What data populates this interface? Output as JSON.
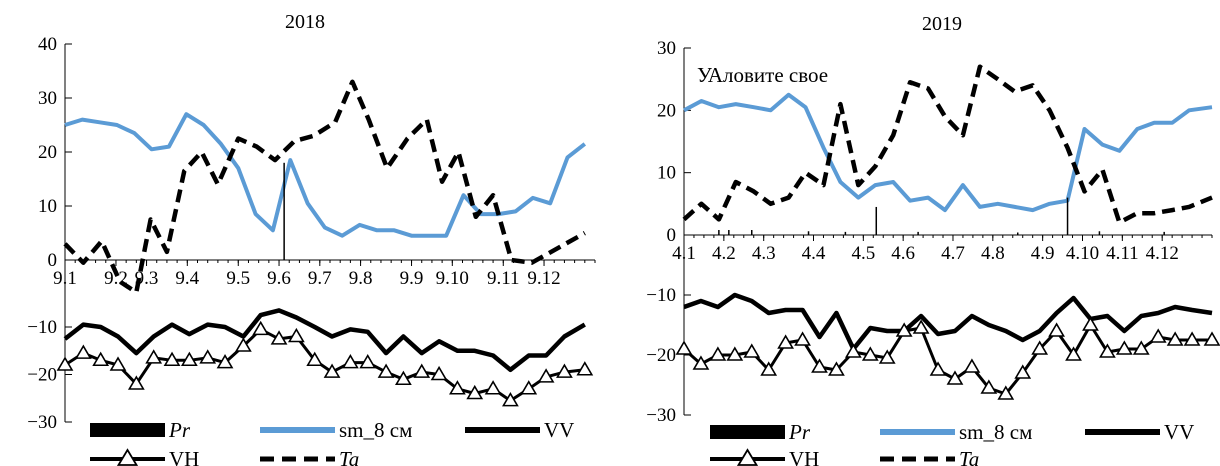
{
  "chart_data": [
    {
      "type": "line",
      "title": "2018",
      "y_upper": {
        "ylim": [
          0,
          40
        ],
        "ticks": [
          0,
          10,
          20,
          30,
          40
        ]
      },
      "y_lower": {
        "ylim": [
          -30,
          -5
        ],
        "ticks": [
          -30,
          -20,
          -10
        ]
      },
      "x_count": 52,
      "x_ticks": [
        {
          "i": 0,
          "label": "9.1"
        },
        {
          "i": 5,
          "label": "9.2"
        },
        {
          "i": 8,
          "label": "9.3"
        },
        {
          "i": 12,
          "label": "9.4"
        },
        {
          "i": 17,
          "label": "9.5"
        },
        {
          "i": 21,
          "label": "9.6"
        },
        {
          "i": 25,
          "label": "9.7"
        },
        {
          "i": 29,
          "label": "9.8"
        },
        {
          "i": 34,
          "label": "9.9"
        },
        {
          "i": 38,
          "label": "9.10"
        },
        {
          "i": 43,
          "label": "9.11"
        },
        {
          "i": 47,
          "label": "9.12"
        }
      ],
      "series": [
        {
          "name": "sm_8 см",
          "panel": "upper",
          "values": [
            25,
            26,
            25.5,
            25,
            23.5,
            20.5,
            21,
            27,
            25,
            21.5,
            17,
            8.5,
            5.5,
            18.5,
            10.5,
            6,
            4.5,
            6.5,
            5.5,
            5.5,
            4.5,
            4.5,
            4.5,
            12,
            8.5,
            8.5,
            9,
            11.5,
            10.5,
            19,
            21.5
          ],
          "x": [
            0,
            1.7,
            3.4,
            5.1,
            6.8,
            8.5,
            10.2,
            11.9,
            13.6,
            15.3,
            17,
            18.7,
            20.4,
            22.1,
            23.8,
            25.5,
            27.2,
            28.9,
            30.6,
            32.3,
            34,
            35.7,
            37.4,
            39.1,
            40.8,
            42.5,
            44.2,
            45.9,
            47.6,
            49.3,
            51
          ]
        },
        {
          "name": "Ta",
          "panel": "upper",
          "values": [
            3,
            -0.5,
            3.5,
            -4,
            -6,
            7.5,
            1.5,
            16.5,
            20,
            14,
            22.5,
            21,
            18.5,
            22,
            23,
            25.5,
            33,
            26,
            17,
            22.5,
            26,
            14.5,
            20,
            8,
            12,
            0,
            -0.5,
            5
          ],
          "x": [
            0,
            1.8,
            3.6,
            5.4,
            7,
            8.4,
            10,
            11.7,
            13.4,
            15,
            17,
            18.8,
            20.6,
            22.5,
            24.4,
            26.5,
            28.2,
            29.8,
            31.6,
            33.6,
            35.5,
            37,
            38.6,
            40.3,
            42,
            43.8,
            45.8,
            51
          ]
        },
        {
          "name": "Pr",
          "panel": "upper",
          "values": [
            18
          ],
          "x": [
            21.5
          ]
        },
        {
          "name": "VV",
          "panel": "lower",
          "values": [
            -12.5,
            -9.5,
            -10,
            -12,
            -15.5,
            -12,
            -9.5,
            -11.5,
            -9.5,
            -10,
            -12,
            -7.5,
            -6.5,
            -8,
            -10,
            -12,
            -10.5,
            -11,
            -15.5,
            -12,
            -15.5,
            -13,
            -15,
            -15,
            -16,
            -19,
            -16,
            -16,
            -12,
            -9.5
          ],
          "x": [
            0,
            1.8,
            3.5,
            5.2,
            7,
            8.7,
            10.5,
            12.2,
            14,
            15.7,
            17.5,
            19.2,
            21,
            22.7,
            24.5,
            26.2,
            28,
            29.7,
            31.5,
            33.2,
            35,
            36.7,
            38.5,
            40.2,
            42,
            43.7,
            45.5,
            47.2,
            49,
            51
          ]
        },
        {
          "name": "VH",
          "panel": "lower",
          "values": [
            -18,
            -15.5,
            -17,
            -18,
            -22,
            -16.5,
            -17,
            -17,
            -16.5,
            -17.5,
            -14,
            -10.5,
            -12.5,
            -12,
            -17,
            -19.5,
            -17.5,
            -17.5,
            -19.5,
            -21,
            -19.5,
            -20,
            -23,
            -24,
            -23,
            -25.5,
            -23,
            -20.5,
            -19.5,
            -19
          ],
          "x": [
            0,
            1.8,
            3.5,
            5.2,
            7,
            8.7,
            10.5,
            12.2,
            14,
            15.7,
            17.5,
            19.2,
            21,
            22.7,
            24.5,
            26.2,
            28,
            29.7,
            31.5,
            33.2,
            35,
            36.7,
            38.5,
            40.2,
            42,
            43.7,
            45.5,
            47.2,
            49,
            51
          ]
        }
      ]
    },
    {
      "type": "line",
      "title": "2019",
      "annotation": "УАловите свое",
      "y_upper": {
        "ylim": [
          0,
          30
        ],
        "ticks": [
          0,
          10,
          20,
          30
        ]
      },
      "y_lower": {
        "ylim": [
          -30,
          -5
        ],
        "ticks": [
          -30,
          -20,
          -10
        ]
      },
      "x_count": 53,
      "x_ticks": [
        {
          "i": 0,
          "label": "4.1"
        },
        {
          "i": 4,
          "label": "4.2"
        },
        {
          "i": 8,
          "label": "4.3"
        },
        {
          "i": 13,
          "label": "4.4"
        },
        {
          "i": 18,
          "label": "4.5"
        },
        {
          "i": 22,
          "label": "4.6"
        },
        {
          "i": 27,
          "label": "4.7"
        },
        {
          "i": 31,
          "label": "4.8"
        },
        {
          "i": 36,
          "label": "4.9"
        },
        {
          "i": 40,
          "label": "4.10"
        },
        {
          "i": 44,
          "label": "4.11"
        },
        {
          "i": 48,
          "label": "4.12"
        }
      ],
      "series": [
        {
          "name": "sm_8 см",
          "panel": "upper",
          "values": [
            20,
            21.5,
            20.5,
            21,
            20.5,
            20,
            22.5,
            20.5,
            14,
            8.5,
            6,
            8,
            8.5,
            5.5,
            6,
            4,
            8,
            4.5,
            5,
            4.5,
            4,
            5,
            5.5,
            17,
            14.5,
            13.5,
            17,
            18,
            18,
            20,
            20.5
          ],
          "x": [
            0,
            1.75,
            3.5,
            5.2,
            7,
            8.7,
            10.5,
            12.2,
            14,
            15.7,
            17.5,
            19.2,
            21,
            22.7,
            24.5,
            26.2,
            28,
            29.7,
            31.5,
            33.2,
            35,
            36.7,
            38.5,
            40.2,
            42,
            43.7,
            45.5,
            47.2,
            49,
            50.7,
            53
          ]
        },
        {
          "name": "Ta",
          "panel": "upper",
          "values": [
            2.5,
            5,
            2.5,
            8.5,
            7,
            5,
            6,
            10,
            8,
            21,
            8,
            11,
            16,
            24.5,
            23.5,
            19,
            16,
            27,
            25,
            23,
            24,
            20,
            14,
            7,
            10.5,
            2,
            3.5,
            3.5,
            4,
            4.5,
            6
          ],
          "x": [
            0,
            1.75,
            3.5,
            5.2,
            7,
            8.7,
            10.5,
            12.2,
            14,
            15.7,
            17.5,
            19.2,
            21,
            22.7,
            24.5,
            26.2,
            28,
            29.7,
            31.5,
            33.2,
            35,
            36.7,
            38.5,
            40.2,
            42,
            43.7,
            45.5,
            47.2,
            49,
            50.7,
            53
          ]
        },
        {
          "name": "Pr",
          "panel": "upper",
          "values": [
            0.8,
            0.8,
            0.8,
            0.6,
            0.5,
            4.5,
            0.5,
            0.4,
            6,
            0.6,
            0.5
          ],
          "x": [
            3.5,
            4.5,
            6.8,
            12.5,
            16.2,
            19.3,
            23.5,
            33.5,
            38.5,
            41.7,
            48.2
          ]
        },
        {
          "name": "VV",
          "panel": "lower",
          "values": [
            -12,
            -11,
            -12,
            -10,
            -11,
            -13,
            -12.5,
            -12.5,
            -17,
            -13,
            -19,
            -15.5,
            -16,
            -16,
            -13.5,
            -16.5,
            -16,
            -13.5,
            -15,
            -16,
            -17.5,
            -16,
            -13,
            -10.5,
            -14,
            -13.5,
            -16,
            -13.5,
            -13,
            -12,
            -12.5,
            -13
          ],
          "x": [
            0,
            1.7,
            3.4,
            5.1,
            6.8,
            8.5,
            10.2,
            11.9,
            13.6,
            15.3,
            17,
            18.7,
            20.4,
            22.1,
            23.8,
            25.5,
            27.2,
            28.9,
            30.6,
            32.3,
            34,
            35.7,
            37.4,
            39.1,
            40.8,
            42.5,
            44.2,
            45.9,
            47.6,
            49.3,
            51,
            53
          ]
        },
        {
          "name": "VH",
          "panel": "lower",
          "values": [
            -19,
            -21.5,
            -20,
            -20,
            -19.5,
            -22.5,
            -18,
            -17.5,
            -22,
            -22.5,
            -19.5,
            -20,
            -20.5,
            -16,
            -15.5,
            -22.5,
            -24,
            -22,
            -25.5,
            -26.5,
            -23,
            -19,
            -16,
            -20,
            -15,
            -19.5,
            -19,
            -19,
            -17,
            -17.5,
            -17.5,
            -17.5
          ],
          "x": [
            0,
            1.7,
            3.4,
            5.1,
            6.8,
            8.5,
            10.2,
            11.9,
            13.6,
            15.3,
            17,
            18.7,
            20.4,
            22.1,
            23.8,
            25.5,
            27.2,
            28.9,
            30.6,
            32.3,
            34,
            35.7,
            37.4,
            39.1,
            40.8,
            42.5,
            44.2,
            45.9,
            47.6,
            49.3,
            51,
            53
          ]
        }
      ]
    }
  ],
  "legend": [
    {
      "key": "pr",
      "label": "Pr",
      "italic": true
    },
    {
      "key": "sm",
      "label": "sm_8 см",
      "italic": false
    },
    {
      "key": "vv",
      "label": "VV",
      "italic": false
    },
    {
      "key": "vh",
      "label": "VH",
      "italic": false
    },
    {
      "key": "ta",
      "label": "Ta",
      "italic": true
    }
  ],
  "colors": {
    "sm": "#5b9bd5",
    "black": "#000000"
  }
}
